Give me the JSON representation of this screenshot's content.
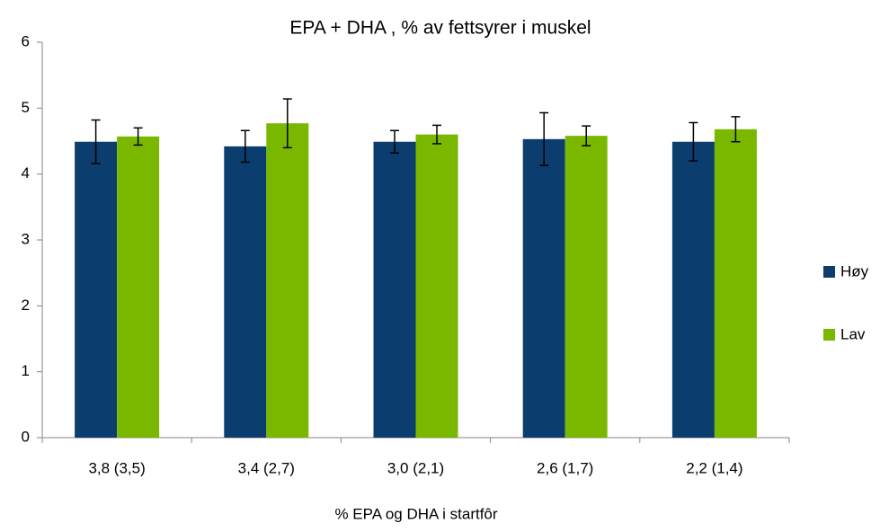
{
  "chart_data": {
    "type": "bar",
    "title": "EPA + DHA , % av fettsyrer i muskel",
    "x_label": "% EPA og DHA i startfôr",
    "categories": [
      "3,8 (3,5)",
      "3,4 (2,7)",
      "3,0 (2,1)",
      "2,6 (1,7)",
      "2,2 (1,4)"
    ],
    "series": [
      {
        "name": "Høy",
        "color": "#0b3d6e",
        "values": [
          4.49,
          4.42,
          4.49,
          4.53,
          4.49
        ],
        "errors": [
          0.33,
          0.24,
          0.17,
          0.4,
          0.29
        ]
      },
      {
        "name": "Lav",
        "color": "#7ab800",
        "values": [
          4.57,
          4.77,
          4.6,
          4.58,
          4.68
        ],
        "errors": [
          0.13,
          0.37,
          0.14,
          0.15,
          0.19
        ]
      }
    ],
    "ylim": [
      0,
      6
    ],
    "yticks": [
      0,
      1,
      2,
      3,
      4,
      5,
      6
    ],
    "legend": "right"
  }
}
